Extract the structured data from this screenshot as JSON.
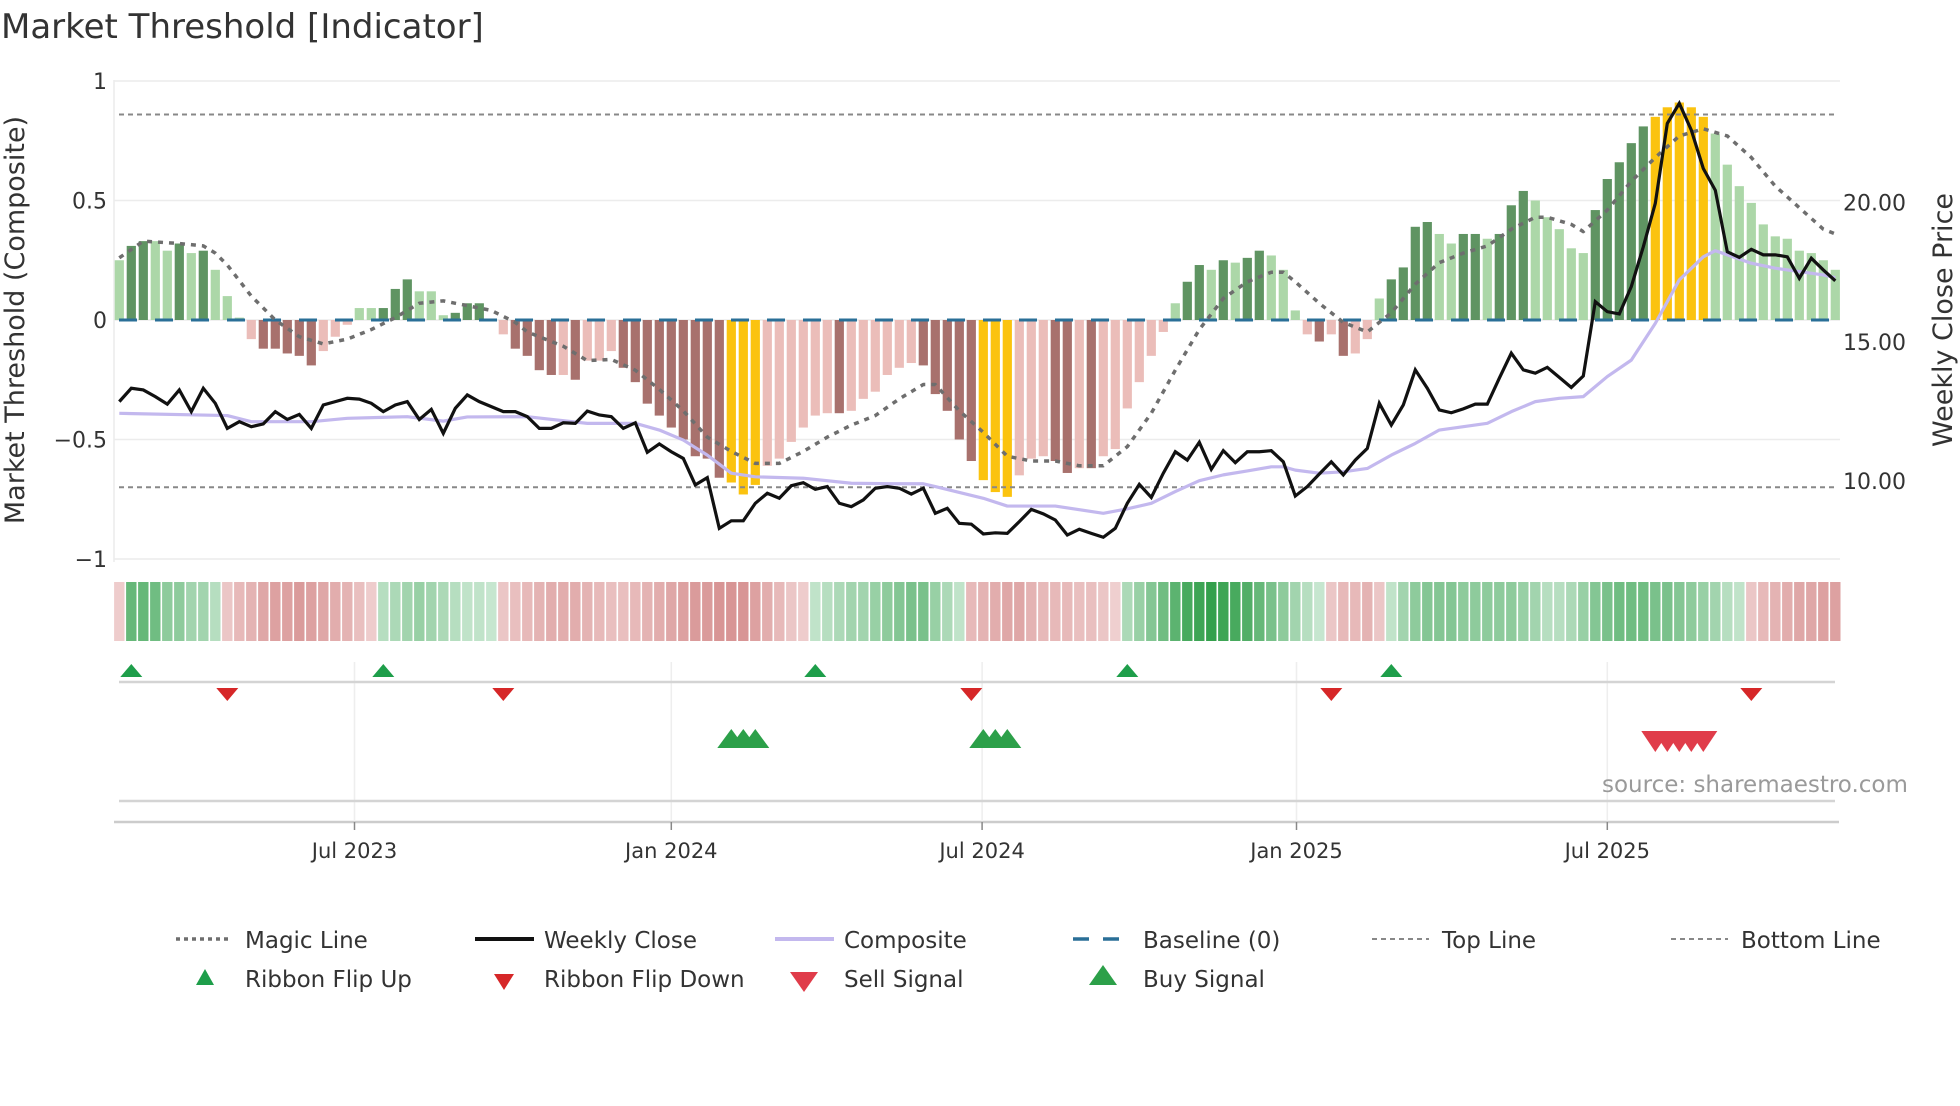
{
  "chart_data": {
    "type": "bar",
    "title": "Market Threshold [Indicator]",
    "ylabel": "Market Threshold (Composite)",
    "y2label": "Weekly Close Price",
    "ylim": [
      -1,
      1
    ],
    "y2lim": [
      10,
      20
    ],
    "yticks": [
      {
        "v": 1,
        "label": "1"
      },
      {
        "v": 0.5,
        "label": "0.5"
      },
      {
        "v": 0,
        "label": "0"
      },
      {
        "v": -0.5,
        "label": "−0.5"
      },
      {
        "v": -1,
        "label": "−1"
      }
    ],
    "y2ticks": [
      {
        "v": 20,
        "label": "20.00"
      },
      {
        "v": 15,
        "label": "15.00"
      },
      {
        "v": 10,
        "label": "10.00"
      }
    ],
    "xticks": [
      {
        "week": 20.6,
        "label": "Jul 2023"
      },
      {
        "week": 47.0,
        "label": "Jan 2024"
      },
      {
        "week": 72.9,
        "label": "Jul 2024"
      },
      {
        "week": 99.1,
        "label": "Jan 2025"
      },
      {
        "week": 125.0,
        "label": "Jul 2025"
      }
    ],
    "grid": true,
    "top_line": 0.86,
    "bottom_line": -0.7,
    "baseline": 0,
    "colors": {
      "D": "#5f9462",
      "L": "#acd7a8",
      "R": "#a8716d",
      "P": "#ebbdb9",
      "Y": "#fbc30f",
      "magic": "#6e6e6e",
      "close": "#111111",
      "composite": "#c3b8ee",
      "baseline": "#2a6f97",
      "ref_lines": "#888888",
      "flip_up": "#1e9e4a",
      "flip_down": "#d62728",
      "buy": "#2ca049",
      "sell": "#e03c4a"
    },
    "composite_histogram": [
      0.25,
      0.31,
      0.33,
      0.33,
      0.29,
      0.32,
      0.28,
      0.29,
      0.21,
      0.1,
      0.01,
      -0.08,
      -0.12,
      -0.12,
      -0.14,
      -0.15,
      -0.19,
      -0.13,
      -0.07,
      -0.02,
      0.05,
      0.05,
      0.05,
      0.13,
      0.17,
      0.12,
      0.12,
      0.02,
      0.03,
      0.07,
      0.07,
      0.0,
      -0.06,
      -0.12,
      -0.15,
      -0.21,
      -0.23,
      -0.23,
      -0.25,
      -0.17,
      -0.17,
      -0.13,
      -0.2,
      -0.26,
      -0.35,
      -0.4,
      -0.45,
      -0.5,
      -0.57,
      -0.58,
      -0.66,
      -0.68,
      -0.73,
      -0.69,
      -0.61,
      -0.58,
      -0.51,
      -0.45,
      -0.4,
      -0.39,
      -0.39,
      -0.38,
      -0.33,
      -0.3,
      -0.23,
      -0.2,
      -0.18,
      -0.19,
      -0.31,
      -0.38,
      -0.5,
      -0.59,
      -0.67,
      -0.72,
      -0.74,
      -0.65,
      -0.58,
      -0.57,
      -0.59,
      -0.64,
      -0.62,
      -0.62,
      -0.57,
      -0.54,
      -0.37,
      -0.26,
      -0.15,
      -0.05,
      0.07,
      0.16,
      0.23,
      0.21,
      0.25,
      0.24,
      0.26,
      0.29,
      0.27,
      0.21,
      0.04,
      -0.06,
      -0.09,
      -0.06,
      -0.15,
      -0.14,
      -0.08,
      0.09,
      0.17,
      0.22,
      0.39,
      0.41,
      0.36,
      0.32,
      0.36,
      0.36,
      0.34,
      0.36,
      0.48,
      0.54,
      0.5,
      0.43,
      0.38,
      0.3,
      0.28,
      0.46,
      0.59,
      0.66,
      0.74,
      0.81,
      0.85,
      0.89,
      0.91,
      0.89,
      0.85,
      0.78,
      0.65,
      0.56,
      0.49,
      0.4,
      0.35,
      0.34,
      0.29,
      0.28,
      0.25,
      0.21
    ],
    "histogram_type": [
      "L",
      "D",
      "D",
      "L",
      "L",
      "D",
      "L",
      "D",
      "L",
      "L",
      "L",
      "P",
      "R",
      "R",
      "R",
      "R",
      "R",
      "P",
      "P",
      "P",
      "L",
      "L",
      "D",
      "D",
      "D",
      "L",
      "L",
      "L",
      "D",
      "D",
      "D",
      "L",
      "P",
      "R",
      "R",
      "R",
      "R",
      "P",
      "R",
      "P",
      "P",
      "P",
      "R",
      "R",
      "R",
      "R",
      "R",
      "R",
      "R",
      "R",
      "R",
      "Y",
      "Y",
      "Y",
      "P",
      "P",
      "P",
      "P",
      "P",
      "P",
      "R",
      "P",
      "P",
      "P",
      "P",
      "P",
      "P",
      "R",
      "R",
      "R",
      "R",
      "R",
      "Y",
      "Y",
      "Y",
      "P",
      "P",
      "P",
      "R",
      "R",
      "P",
      "R",
      "P",
      "P",
      "P",
      "P",
      "P",
      "P",
      "L",
      "D",
      "D",
      "L",
      "D",
      "L",
      "D",
      "D",
      "L",
      "L",
      "L",
      "P",
      "R",
      "P",
      "R",
      "P",
      "P",
      "L",
      "D",
      "D",
      "D",
      "D",
      "L",
      "L",
      "D",
      "D",
      "L",
      "D",
      "D",
      "D",
      "L",
      "L",
      "L",
      "L",
      "L",
      "D",
      "D",
      "D",
      "D",
      "D",
      "Y",
      "Y",
      "Y",
      "Y",
      "Y",
      "L",
      "L",
      "L",
      "L",
      "L",
      "L",
      "L",
      "L",
      "L",
      "L",
      "L"
    ],
    "weekly_close": [
      12.85,
      13.33,
      13.27,
      13.03,
      12.76,
      13.27,
      12.49,
      13.33,
      12.79,
      11.89,
      12.13,
      11.95,
      12.05,
      12.49,
      12.21,
      12.39,
      11.89,
      12.73,
      12.85,
      12.97,
      12.94,
      12.79,
      12.49,
      12.73,
      12.85,
      12.21,
      12.57,
      11.71,
      12.61,
      13.09,
      12.85,
      12.67,
      12.49,
      12.49,
      12.31,
      11.89,
      11.89,
      12.09,
      12.07,
      12.51,
      12.37,
      12.31,
      11.89,
      12.09,
      11.03,
      11.33,
      11.05,
      10.81,
      9.86,
      10.12,
      8.3,
      8.57,
      8.57,
      9.2,
      9.56,
      9.38,
      9.83,
      9.94,
      9.7,
      9.8,
      9.2,
      9.08,
      9.32,
      9.74,
      9.8,
      9.74,
      9.53,
      9.74,
      8.84,
      9.02,
      8.48,
      8.45,
      8.1,
      8.14,
      8.12,
      8.54,
      8.98,
      8.82,
      8.6,
      8.06,
      8.27,
      8.12,
      7.98,
      8.3,
      9.2,
      9.88,
      9.41,
      10.28,
      11.05,
      10.75,
      11.39,
      10.42,
      11.09,
      10.66,
      11.05,
      11.05,
      11.09,
      10.69,
      9.46,
      9.8,
      10.25,
      10.69,
      10.22,
      10.75,
      11.17,
      12.79,
      12.01,
      12.73,
      13.99,
      13.33,
      12.55,
      12.45,
      12.59,
      12.76,
      12.76,
      13.69,
      14.59,
      13.99,
      13.87,
      14.08,
      13.72,
      13.36,
      13.77,
      16.44,
      16.08,
      16.0,
      16.98,
      18.41,
      19.97,
      22.84,
      23.56,
      22.6,
      21.22,
      20.44,
      18.23,
      18.03,
      18.32,
      18.12,
      18.12,
      18.05,
      17.28,
      18.0,
      17.58,
      17.19
    ],
    "composite_line": [
      [
        1,
        12.43
      ],
      [
        10,
        12.35
      ],
      [
        12,
        12.13
      ],
      [
        17,
        12.13
      ],
      [
        20,
        12.25
      ],
      [
        25,
        12.31
      ],
      [
        28,
        12.15
      ],
      [
        30,
        12.3
      ],
      [
        35,
        12.31
      ],
      [
        40,
        12.07
      ],
      [
        44,
        12.07
      ],
      [
        46,
        11.83
      ],
      [
        48,
        11.47
      ],
      [
        50,
        10.93
      ],
      [
        52,
        10.28
      ],
      [
        54,
        10.15
      ],
      [
        58,
        10.1
      ],
      [
        62,
        9.92
      ],
      [
        66,
        9.9
      ],
      [
        68,
        9.9
      ],
      [
        69,
        9.8
      ],
      [
        73,
        9.38
      ],
      [
        75,
        9.1
      ],
      [
        79,
        9.1
      ],
      [
        83,
        8.84
      ],
      [
        85,
        9.0
      ],
      [
        87,
        9.2
      ],
      [
        89,
        9.62
      ],
      [
        91,
        10.01
      ],
      [
        93,
        10.22
      ],
      [
        95,
        10.36
      ],
      [
        97,
        10.51
      ],
      [
        98,
        10.51
      ],
      [
        99,
        10.39
      ],
      [
        101,
        10.28
      ],
      [
        103,
        10.33
      ],
      [
        105,
        10.45
      ],
      [
        107,
        10.93
      ],
      [
        109,
        11.35
      ],
      [
        111,
        11.83
      ],
      [
        113,
        11.95
      ],
      [
        115,
        12.07
      ],
      [
        117,
        12.49
      ],
      [
        119,
        12.85
      ],
      [
        121,
        12.97
      ],
      [
        123,
        13.03
      ],
      [
        125,
        13.75
      ],
      [
        127,
        14.34
      ],
      [
        129,
        15.66
      ],
      [
        131,
        17.22
      ],
      [
        133,
        18.05
      ],
      [
        134,
        18.27
      ],
      [
        135,
        18.12
      ],
      [
        137,
        17.82
      ],
      [
        139,
        17.64
      ],
      [
        141,
        17.52
      ],
      [
        143,
        17.4
      ],
      [
        144,
        17.3
      ]
    ],
    "magic_line": [
      [
        1,
        0.26
      ],
      [
        3,
        0.33
      ],
      [
        6,
        0.32
      ],
      [
        8,
        0.31
      ],
      [
        9,
        0.28
      ],
      [
        10,
        0.23
      ],
      [
        12,
        0.1
      ],
      [
        14,
        0.0
      ],
      [
        16,
        -0.07
      ],
      [
        18,
        -0.1
      ],
      [
        20,
        -0.08
      ],
      [
        22,
        -0.04
      ],
      [
        24,
        0.01
      ],
      [
        26,
        0.07
      ],
      [
        28,
        0.08
      ],
      [
        30,
        0.06
      ],
      [
        32,
        0.04
      ],
      [
        34,
        -0.01
      ],
      [
        35,
        -0.05
      ],
      [
        38,
        -0.11
      ],
      [
        40,
        -0.17
      ],
      [
        42,
        -0.165
      ],
      [
        44,
        -0.21
      ],
      [
        46,
        -0.29
      ],
      [
        48,
        -0.38
      ],
      [
        50,
        -0.49
      ],
      [
        52,
        -0.55
      ],
      [
        54,
        -0.6
      ],
      [
        56,
        -0.6
      ],
      [
        58,
        -0.55
      ],
      [
        60,
        -0.49
      ],
      [
        62,
        -0.44
      ],
      [
        64,
        -0.4
      ],
      [
        66,
        -0.33
      ],
      [
        68,
        -0.27
      ],
      [
        69,
        -0.27
      ],
      [
        71,
        -0.38
      ],
      [
        73,
        -0.47
      ],
      [
        75,
        -0.57
      ],
      [
        77,
        -0.59
      ],
      [
        79,
        -0.59
      ],
      [
        81,
        -0.61
      ],
      [
        83,
        -0.61
      ],
      [
        85,
        -0.53
      ],
      [
        87,
        -0.39
      ],
      [
        89,
        -0.21
      ],
      [
        91,
        -0.04
      ],
      [
        93,
        0.09
      ],
      [
        95,
        0.16
      ],
      [
        97,
        0.2
      ],
      [
        98,
        0.2
      ],
      [
        99,
        0.16
      ],
      [
        101,
        0.07
      ],
      [
        103,
        -0.01
      ],
      [
        105,
        -0.05
      ],
      [
        107,
        0.03
      ],
      [
        109,
        0.15
      ],
      [
        111,
        0.24
      ],
      [
        113,
        0.28
      ],
      [
        115,
        0.31
      ],
      [
        117,
        0.38
      ],
      [
        119,
        0.43
      ],
      [
        120,
        0.43
      ],
      [
        122,
        0.4
      ],
      [
        123,
        0.37
      ],
      [
        125,
        0.46
      ],
      [
        127,
        0.58
      ],
      [
        129,
        0.68
      ],
      [
        131,
        0.77
      ],
      [
        133,
        0.8
      ],
      [
        135,
        0.77
      ],
      [
        137,
        0.68
      ],
      [
        139,
        0.56
      ],
      [
        141,
        0.47
      ],
      [
        143,
        0.38
      ],
      [
        144,
        0.36
      ]
    ],
    "ribbon": [
      -0.15,
      0.6,
      0.6,
      0.55,
      0.4,
      0.4,
      0.3,
      0.3,
      0.2,
      -0.2,
      -0.3,
      -0.35,
      -0.45,
      -0.5,
      -0.5,
      -0.55,
      -0.5,
      -0.45,
      -0.4,
      -0.35,
      -0.25,
      -0.15,
      0.2,
      0.25,
      0.3,
      0.35,
      0.3,
      0.25,
      0.2,
      0.15,
      0.15,
      0.12,
      -0.2,
      -0.25,
      -0.3,
      -0.35,
      -0.4,
      -0.4,
      -0.4,
      -0.35,
      -0.3,
      -0.25,
      -0.25,
      -0.3,
      -0.35,
      -0.4,
      -0.45,
      -0.5,
      -0.55,
      -0.55,
      -0.6,
      -0.6,
      -0.6,
      -0.5,
      -0.4,
      -0.3,
      -0.2,
      -0.15,
      0.15,
      0.2,
      0.25,
      0.3,
      0.3,
      0.35,
      0.4,
      0.45,
      0.5,
      0.5,
      0.35,
      0.25,
      0.15,
      -0.3,
      -0.35,
      -0.4,
      -0.45,
      -0.45,
      -0.35,
      -0.3,
      -0.3,
      -0.3,
      -0.25,
      -0.25,
      -0.2,
      -0.12,
      0.25,
      0.35,
      0.45,
      0.55,
      0.65,
      0.75,
      0.8,
      0.85,
      0.8,
      0.75,
      0.7,
      0.6,
      0.5,
      0.4,
      0.3,
      0.2,
      0.12,
      -0.2,
      -0.3,
      -0.3,
      -0.35,
      -0.2,
      0.15,
      0.3,
      0.4,
      0.45,
      0.45,
      0.45,
      0.4,
      0.4,
      0.4,
      0.4,
      0.4,
      0.35,
      0.3,
      0.2,
      0.2,
      0.25,
      0.35,
      0.45,
      0.5,
      0.55,
      0.55,
      0.55,
      0.5,
      0.5,
      0.45,
      0.4,
      0.35,
      0.3,
      0.2,
      0.15,
      -0.2,
      -0.3,
      -0.35,
      -0.4,
      -0.45,
      -0.45,
      -0.5,
      -0.5
    ],
    "ribbon_flip_up_weeks": [
      2,
      23,
      59,
      85,
      107
    ],
    "ribbon_flip_down_weeks": [
      10,
      33,
      72,
      102,
      137
    ],
    "buy_signal_weeks": [
      52,
      53,
      54,
      73,
      74,
      75
    ],
    "sell_signal_weeks": [
      129,
      130,
      131,
      132,
      133
    ],
    "legend": {
      "placement": "bottom",
      "items": [
        {
          "label": "Magic Line",
          "symbol": "dotted-line"
        },
        {
          "label": "Weekly Close",
          "symbol": "solid-line"
        },
        {
          "label": "Composite",
          "symbol": "lavender-line"
        },
        {
          "label": "Baseline (0)",
          "symbol": "dashed-line"
        },
        {
          "label": "Top Line",
          "symbol": "dotted-gray-line"
        },
        {
          "label": "Bottom Line",
          "symbol": "dotted-gray-line"
        },
        {
          "label": "Ribbon Flip Up",
          "symbol": "triangle-up-small"
        },
        {
          "label": "Ribbon Flip Down",
          "symbol": "triangle-down-small"
        },
        {
          "label": "Sell Signal",
          "symbol": "triangle-down"
        },
        {
          "label": "Buy Signal",
          "symbol": "triangle-up"
        }
      ]
    },
    "source": "source: sharemaestro.com"
  }
}
